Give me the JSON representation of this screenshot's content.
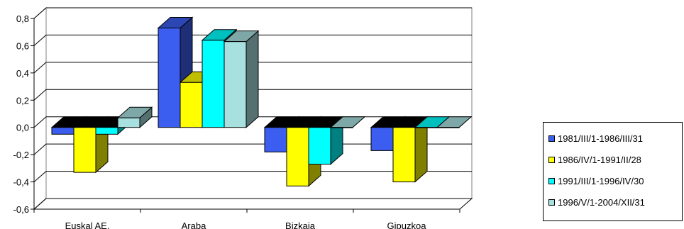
{
  "chart_data": {
    "type": "bar",
    "categories": [
      "Euskal AE.",
      "Araba",
      "Bizkaia",
      "Gipuzkoa"
    ],
    "series": [
      {
        "name": "1981/III/1-1986/III/31",
        "color": "#3b5ef0",
        "values": [
          -0.05,
          0.73,
          -0.18,
          -0.17
        ]
      },
      {
        "name": "1986/IV/1-1991/II/28",
        "color": "#ffff00",
        "values": [
          -0.33,
          0.33,
          -0.43,
          -0.4
        ]
      },
      {
        "name": "1991/III/1-1996/IV/30",
        "color": "#00ffff",
        "values": [
          -0.05,
          0.64,
          -0.27,
          0.0
        ]
      },
      {
        "name": "1996/V/1-2004/XII/31",
        "color": "#a8e0e0",
        "values": [
          0.07,
          0.63,
          0.0,
          0.0
        ]
      }
    ],
    "yticks": [
      "0,8",
      "0,6",
      "0,4",
      "0,2",
      "0,0",
      "-0,2",
      "-0,4",
      "-0,6"
    ],
    "ylim": [
      -0.6,
      0.8
    ],
    "grid": true,
    "legend_position": "right"
  }
}
